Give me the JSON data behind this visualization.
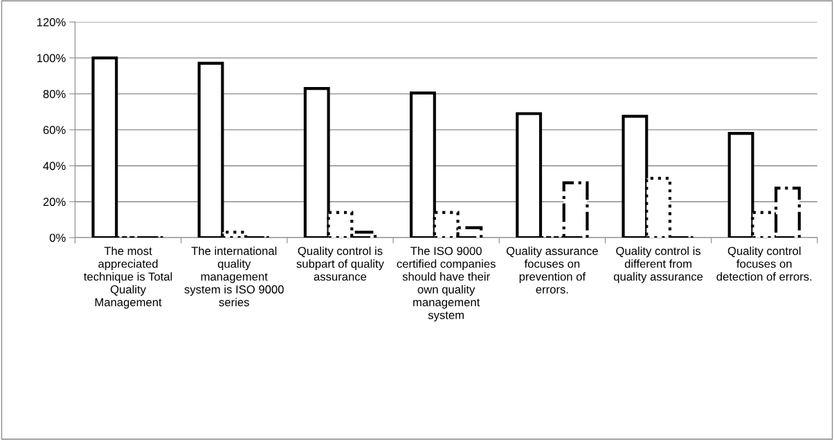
{
  "chart_data": {
    "type": "bar",
    "categories": [
      "The most appreciated technique is Total Quality Management",
      "The international quality management system is ISO 9000 series",
      "Quality control is subpart of quality assurance",
      "The ISO 9000 certified companies should have their own quality management system",
      "Quality assurance focuses on prevention of errors.",
      "Quality control is different from quality assurance",
      "Quality control focuses on detection of errors."
    ],
    "series": [
      {
        "color": "#000000",
        "line_style": "solid",
        "values": [
          100,
          97,
          83,
          80.5,
          69,
          67.5,
          58
        ]
      },
      {
        "color": "#000000",
        "line_style": "dotted",
        "values": [
          0,
          3,
          14,
          14,
          0,
          33,
          14
        ]
      },
      {
        "color": "#000000",
        "line_style": "dashdot",
        "values": [
          0,
          0,
          3,
          5.5,
          30.5,
          0,
          27.5
        ]
      }
    ],
    "ylim": [
      0,
      120
    ],
    "yticks": [
      {
        "value": 0,
        "label": "0%"
      },
      {
        "value": 20,
        "label": "20%"
      },
      {
        "value": 40,
        "label": "40%"
      },
      {
        "value": 60,
        "label": "60%"
      },
      {
        "value": 80,
        "label": "80%"
      },
      {
        "value": 100,
        "label": "100%"
      },
      {
        "value": 120,
        "label": "120%"
      }
    ],
    "grid": "y",
    "legend": false
  }
}
